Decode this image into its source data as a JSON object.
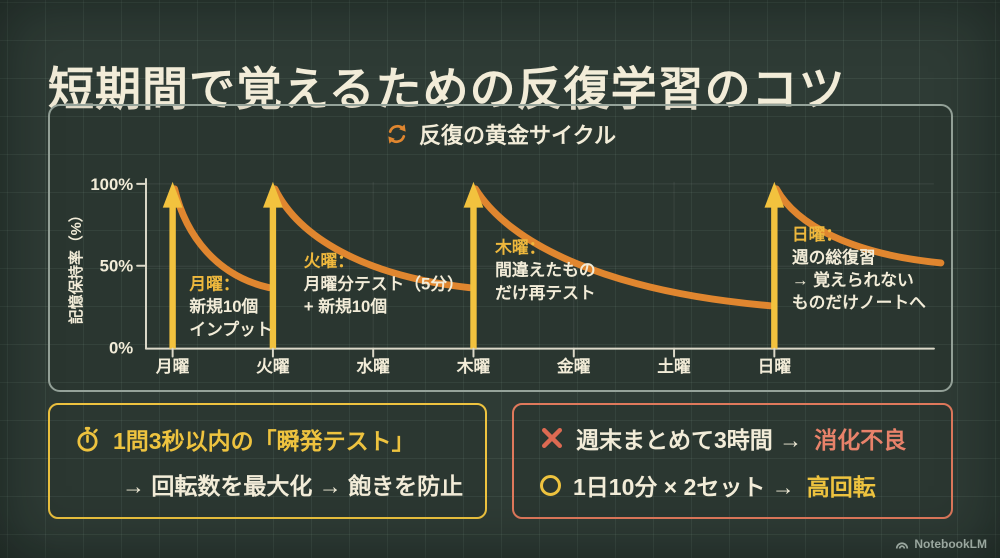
{
  "title": "短期間で覚えるための反復学習のコツ",
  "chart": {
    "heading": "反復の黄金サイクル",
    "y_axis_label": "記憶保持率（%）",
    "y_tick_labels": [
      "100%",
      "50%",
      "0%"
    ]
  },
  "chart_data": {
    "type": "line",
    "title": "反復の黄金サイクル",
    "ylabel": "記憶保持率（%）",
    "ylim": [
      0,
      100
    ],
    "yticks": [
      0,
      50,
      100
    ],
    "x_categories": [
      "月曜",
      "火曜",
      "水曜",
      "木曜",
      "金曜",
      "土曜",
      "日曜"
    ],
    "grid": true,
    "series": [
      {
        "name": "記憶保持率",
        "color": "#e0862f",
        "segments": [
          {
            "from": {
              "day": 1,
              "pct": 100
            },
            "to": {
              "day": 2,
              "pct": 37
            }
          },
          {
            "from": {
              "day": 2,
              "pct": 100
            },
            "to": {
              "day": 4,
              "pct": 37
            }
          },
          {
            "from": {
              "day": 4,
              "pct": 100
            },
            "to": {
              "day": 7,
              "pct": 26
            }
          },
          {
            "from": {
              "day": 7,
              "pct": 100
            },
            "to": {
              "day": 8.7,
              "pct": 52
            }
          }
        ]
      }
    ],
    "review_spikes": {
      "days": [
        1,
        2,
        4,
        7
      ],
      "pct": 100,
      "color": "#f2c23e"
    },
    "annotations": [
      {
        "day_label": "月曜：",
        "lines": [
          "新規10個",
          "インプット"
        ]
      },
      {
        "day_label": "火曜：",
        "lines": [
          "月曜分テスト（5分）",
          "+ 新規10個"
        ]
      },
      {
        "day_label": "木曜：",
        "lines": [
          "間違えたもの",
          "だけ再テスト"
        ]
      },
      {
        "day_label": "日曜：",
        "lines": [
          "週の総復習",
          "→ 覚えられない",
          "ものだけノートへ"
        ]
      }
    ]
  },
  "tips": {
    "speed": {
      "line1": "1問3秒以内の「瞬発テスト」",
      "line2": "→ 回転数を最大化 → 飽きを防止"
    },
    "comparison": {
      "bad_prefix": "週末まとめて3時間 →",
      "bad_highlight": "消化不良",
      "good_prefix": "1日10分 × 2セット →",
      "good_highlight": "高回転"
    }
  },
  "watermark": "NotebookLM",
  "colors": {
    "background": "#2e3b35",
    "panel_border": "#95a39a",
    "cream": "#f2ecd8",
    "yellow": "#eec33f",
    "gold_arrow": "#f2c23e",
    "orange": "#e0862f",
    "salmon": "#e0795c",
    "salmon_text": "#e8826a",
    "ann_yellow": "#eeb83d"
  }
}
